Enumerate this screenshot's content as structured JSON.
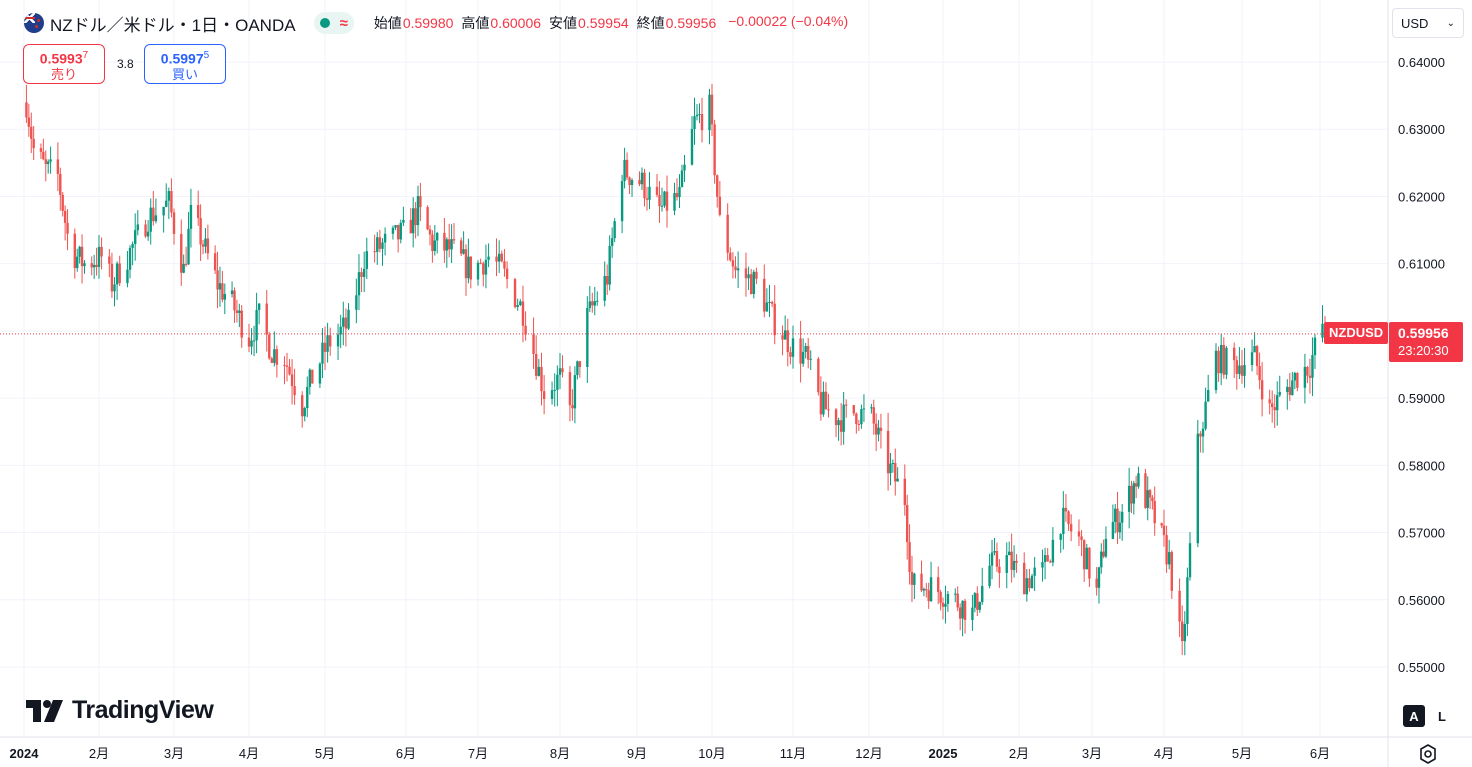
{
  "header": {
    "symbol_title": "NZドル／米ドル・1日・OANDA",
    "status_icon": "wave-icon",
    "ohlc": [
      {
        "label": "始値",
        "value": "0.59980"
      },
      {
        "label": "高値",
        "value": "0.60006"
      },
      {
        "label": "安値",
        "value": "0.59954"
      },
      {
        "label": "終値",
        "value": "0.59956"
      }
    ],
    "change": "−0.00022 (−0.04%)"
  },
  "trade": {
    "sell_price_main": "0.5993",
    "sell_price_sup": "7",
    "sell_label": "売り",
    "spread": "3.8",
    "buy_price_main": "0.5997",
    "buy_price_sup": "5",
    "buy_label": "買い"
  },
  "currency_select": {
    "value": "USD"
  },
  "price_tag": {
    "ticker": "NZDUSD",
    "price": "0.59956",
    "countdown": "23:20:30"
  },
  "logo": {
    "text": "TradingView"
  },
  "buttons": {
    "auto": "A",
    "log": "L"
  },
  "colors": {
    "up": "#089981",
    "down": "#ef5350",
    "accent": "#2962ff",
    "price_line": "#f23645",
    "grid": "#f0f3fa"
  },
  "chart_data": {
    "type": "candlestick",
    "title": "NZドル／米ドル・1日・OANDA",
    "ylim": [
      0.545,
      0.6435
    ],
    "y_ticks": [
      "0.64000",
      "0.63000",
      "0.62000",
      "0.61000",
      "0.60000",
      "0.59000",
      "0.58000",
      "0.57000",
      "0.56000",
      "0.55000"
    ],
    "x_ticks": [
      "2024",
      "2月",
      "3月",
      "4月",
      "5月",
      "6月",
      "7月",
      "8月",
      "9月",
      "10月",
      "11月",
      "12月",
      "2025",
      "2月",
      "3月",
      "4月",
      "5月",
      "6月"
    ],
    "bold_ticks": [
      "2024",
      "2025"
    ],
    "last_close": 0.59956,
    "path": [
      [
        "2024-01-02",
        0.634
      ],
      [
        "2024-01-05",
        0.627
      ],
      [
        "2024-01-10",
        0.624
      ],
      [
        "2024-01-15",
        0.623
      ],
      [
        "2024-01-20",
        0.612
      ],
      [
        "2024-01-26",
        0.61
      ],
      [
        "2024-02-02",
        0.611
      ],
      [
        "2024-02-06",
        0.607
      ],
      [
        "2024-02-12",
        0.611
      ],
      [
        "2024-02-20",
        0.617
      ],
      [
        "2024-02-28",
        0.619
      ],
      [
        "2024-03-05",
        0.609
      ],
      [
        "2024-03-08",
        0.617
      ],
      [
        "2024-03-12",
        0.614
      ],
      [
        "2024-03-19",
        0.607
      ],
      [
        "2024-03-25",
        0.604
      ],
      [
        "2024-04-01",
        0.599
      ],
      [
        "2024-04-05",
        0.602
      ],
      [
        "2024-04-10",
        0.597
      ],
      [
        "2024-04-15",
        0.596
      ],
      [
        "2024-04-22",
        0.589
      ],
      [
        "2024-04-26",
        0.593
      ],
      [
        "2024-05-02",
        0.598
      ],
      [
        "2024-05-10",
        0.601
      ],
      [
        "2024-05-16",
        0.611
      ],
      [
        "2024-05-24",
        0.613
      ],
      [
        "2024-05-31",
        0.6145
      ],
      [
        "2024-06-06",
        0.618
      ],
      [
        "2024-06-12",
        0.613
      ],
      [
        "2024-06-20",
        0.612
      ],
      [
        "2024-06-28",
        0.609
      ],
      [
        "2024-07-05",
        0.611
      ],
      [
        "2024-07-10",
        0.609
      ],
      [
        "2024-07-18",
        0.603
      ],
      [
        "2024-07-26",
        0.591
      ],
      [
        "2024-08-01",
        0.593
      ],
      [
        "2024-08-05",
        0.588
      ],
      [
        "2024-08-12",
        0.602
      ],
      [
        "2024-08-20",
        0.608
      ],
      [
        "2024-08-26",
        0.624
      ],
      [
        "2024-09-03",
        0.622
      ],
      [
        "2024-09-10",
        0.618
      ],
      [
        "2024-09-18",
        0.62
      ],
      [
        "2024-09-24",
        0.631
      ],
      [
        "2024-09-30",
        0.633
      ],
      [
        "2024-10-04",
        0.616
      ],
      [
        "2024-10-10",
        0.609
      ],
      [
        "2024-10-18",
        0.607
      ],
      [
        "2024-10-24",
        0.602
      ],
      [
        "2024-10-31",
        0.598
      ],
      [
        "2024-11-06",
        0.596
      ],
      [
        "2024-11-12",
        0.589
      ],
      [
        "2024-11-19",
        0.587
      ],
      [
        "2024-11-26",
        0.588
      ],
      [
        "2024-12-02",
        0.587
      ],
      [
        "2024-12-09",
        0.58
      ],
      [
        "2024-12-16",
        0.575
      ],
      [
        "2024-12-19",
        0.562
      ],
      [
        "2024-12-27",
        0.562
      ],
      [
        "2025-01-06",
        0.56
      ],
      [
        "2025-01-13",
        0.558
      ],
      [
        "2025-01-20",
        0.565
      ],
      [
        "2025-01-27",
        0.566
      ],
      [
        "2025-02-03",
        0.563
      ],
      [
        "2025-02-10",
        0.564
      ],
      [
        "2025-02-17",
        0.572
      ],
      [
        "2025-02-24",
        0.569
      ],
      [
        "2025-03-03",
        0.561
      ],
      [
        "2025-03-07",
        0.57
      ],
      [
        "2025-03-14",
        0.573
      ],
      [
        "2025-03-20",
        0.578
      ],
      [
        "2025-03-27",
        0.573
      ],
      [
        "2025-04-03",
        0.566
      ],
      [
        "2025-04-08",
        0.552
      ],
      [
        "2025-04-14",
        0.583
      ],
      [
        "2025-04-21",
        0.596
      ],
      [
        "2025-04-28",
        0.595
      ],
      [
        "2025-05-06",
        0.596
      ],
      [
        "2025-05-12",
        0.588
      ],
      [
        "2025-05-16",
        0.59
      ],
      [
        "2025-05-22",
        0.593
      ],
      [
        "2025-05-28",
        0.595
      ],
      [
        "2025-06-02",
        0.601
      ],
      [
        "2025-06-03",
        0.59956
      ]
    ]
  }
}
